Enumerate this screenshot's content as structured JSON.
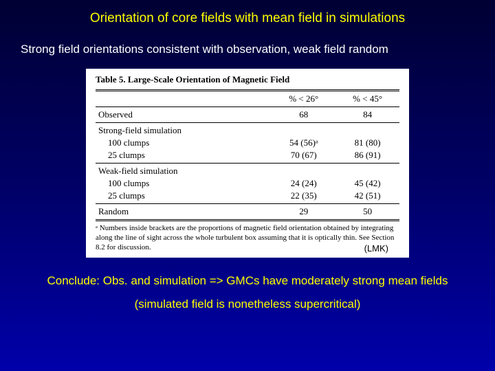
{
  "slide": {
    "title": "Orientation of core fields with mean field in simulations",
    "subtitle": "Strong field orientations consistent with observation, weak field random",
    "conclusion_line1": "Conclude: Obs. and simulation => GMCs have moderately strong mean fields",
    "conclusion_line2": "(simulated field is nonetheless supercritical)"
  },
  "table": {
    "caption": "Table 5. Large-Scale Orientation of Magnetic Field",
    "header_col2": "% < 26°",
    "header_col3": "% < 45°",
    "rows_observed": {
      "label": "Observed",
      "c2": "68",
      "c3": "84"
    },
    "section_strong": "Strong-field simulation",
    "strong_100": {
      "label": "100 clumps",
      "c2": "54 (56)ᵃ",
      "c3": "81 (80)"
    },
    "strong_25": {
      "label": "25 clumps",
      "c2": "70 (67)",
      "c3": "86 (91)"
    },
    "section_weak": "Weak-field simulation",
    "weak_100": {
      "label": "100 clumps",
      "c2": "24 (24)",
      "c3": "45 (42)"
    },
    "weak_25": {
      "label": "25 clumps",
      "c2": "22 (35)",
      "c3": "42 (51)"
    },
    "rows_random": {
      "label": "Random",
      "c2": "29",
      "c3": "50"
    },
    "footnote": "ᵃ Numbers inside brackets are the proportions of magnetic field orientation obtained by integrating along the line of sight across the whole turbulent box assuming that it is optically thin. See Section 8.2 for discussion.",
    "citation": "(LMK)"
  },
  "colors": {
    "title_color": "#ffff00",
    "body_text_color": "#ffffff",
    "table_bg": "#ffffff",
    "table_text": "#000000"
  }
}
